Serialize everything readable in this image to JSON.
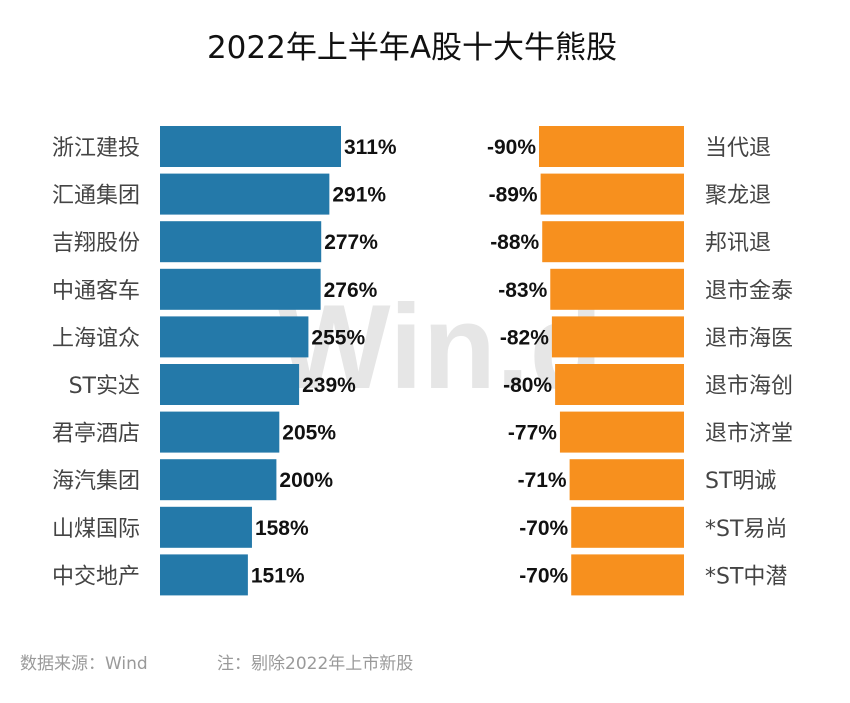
{
  "title": "2022年上半年A股十大牛熊股",
  "watermark": "Win.d",
  "footer": {
    "source": "数据来源：Wind",
    "note": "注：剔除2022年上市新股"
  },
  "colors": {
    "bull": "#2479A9",
    "bear": "#F7901E"
  },
  "chart_data": [
    {
      "type": "bar",
      "orientation": "horizontal",
      "name": "十大牛股",
      "categories": [
        "浙江建投",
        "汇通集团",
        "吉翔股份",
        "中通客车",
        "上海谊众",
        "ST实达",
        "君亭酒店",
        "海汽集团",
        "山煤国际",
        "中交地产"
      ],
      "values": [
        311,
        291,
        277,
        276,
        255,
        239,
        205,
        200,
        158,
        151
      ],
      "labels": [
        "311%",
        "291%",
        "277%",
        "276%",
        "255%",
        "239%",
        "205%",
        "200%",
        "158%",
        "151%"
      ],
      "unit": "%",
      "xlim": [
        0,
        311
      ]
    },
    {
      "type": "bar",
      "orientation": "horizontal",
      "name": "十大熊股",
      "categories": [
        "当代退",
        "聚龙退",
        "邦讯退",
        "退市金泰",
        "退市海医",
        "退市海创",
        "退市济堂",
        "ST明诚",
        "*ST易尚",
        "*ST中潜"
      ],
      "values": [
        -90,
        -89,
        -88,
        -83,
        -82,
        -80,
        -77,
        -71,
        -70,
        -70
      ],
      "labels": [
        "-90%",
        "-89%",
        "-88%",
        "-83%",
        "-82%",
        "-80%",
        "-77%",
        "-71%",
        "-70%",
        "-70%"
      ],
      "unit": "%",
      "xlim": [
        -90,
        0
      ]
    }
  ]
}
